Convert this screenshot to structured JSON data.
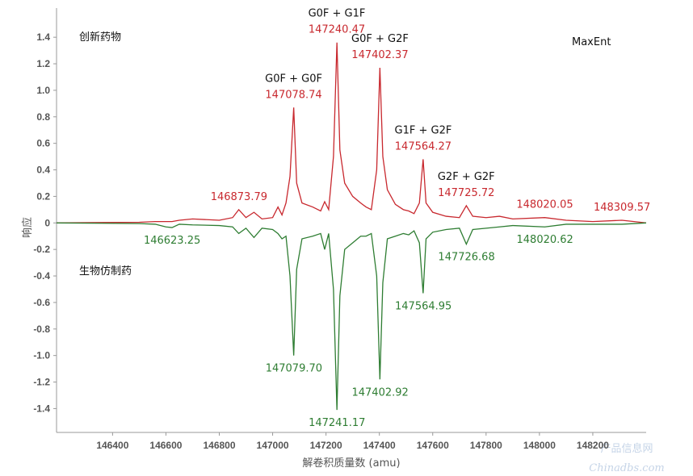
{
  "chart_data": {
    "type": "line",
    "xlabel": "解卷积质量数 (amu)",
    "ylabel": "响应",
    "texts": [
      "创新药物",
      "生物仿制药",
      "MaxEnt"
    ],
    "watermark": [
      "产品信息网",
      "Chinadbs.com"
    ],
    "xlim": [
      146190,
      148400
    ],
    "xticks": [
      146400,
      146600,
      146800,
      147000,
      147200,
      147400,
      147600,
      147800,
      148000,
      148200
    ],
    "ylim": [
      -1.58,
      1.62
    ],
    "yticks": [
      {
        "value": -1.4,
        "label": "-1.4"
      },
      {
        "value": -1.2,
        "label": "-1.2"
      },
      {
        "value": -1,
        "label": "-1.0"
      },
      -0.8,
      -0.6,
      -0.4,
      -0.2,
      0,
      0.2,
      0.4,
      0.6,
      0.8,
      {
        "value": 1,
        "label": "1.0"
      },
      1.2,
      1.4
    ],
    "x": [
      146190,
      146500,
      146560,
      146600,
      146623,
      146650,
      146700,
      146800,
      146850,
      146873,
      146900,
      146930,
      146960,
      147000,
      147020,
      147035,
      147050,
      147065,
      147079,
      147090,
      147110,
      147150,
      147180,
      147195,
      147210,
      147228,
      147241,
      147252,
      147270,
      147300,
      147330,
      147350,
      147370,
      147390,
      147402,
      147413,
      147430,
      147460,
      147490,
      147510,
      147530,
      147550,
      147564,
      147575,
      147600,
      147650,
      147700,
      147726,
      147750,
      147800,
      147850,
      147900,
      148020,
      148100,
      148200,
      148309,
      148400
    ],
    "series": [
      {
        "color": "#c8282e",
        "values": [
          0,
          0.005,
          0.01,
          0.01,
          0.01,
          0.02,
          0.03,
          0.02,
          0.04,
          0.1,
          0.04,
          0.08,
          0.03,
          0.04,
          0.12,
          0.06,
          0.15,
          0.35,
          0.87,
          0.3,
          0.15,
          0.12,
          0.09,
          0.16,
          0.1,
          0.5,
          1.36,
          0.55,
          0.3,
          0.2,
          0.15,
          0.12,
          0.1,
          0.4,
          1.17,
          0.5,
          0.25,
          0.14,
          0.1,
          0.09,
          0.07,
          0.15,
          0.48,
          0.15,
          0.08,
          0.05,
          0.04,
          0.13,
          0.05,
          0.04,
          0.05,
          0.03,
          0.04,
          0.02,
          0.01,
          0.02,
          0
        ]
      },
      {
        "color": "#2e7d32",
        "values": [
          0,
          -0.005,
          -0.01,
          -0.03,
          -0.035,
          -0.01,
          -0.015,
          -0.02,
          -0.03,
          -0.08,
          -0.04,
          -0.11,
          -0.04,
          -0.05,
          -0.08,
          -0.12,
          -0.1,
          -0.4,
          -1.0,
          -0.35,
          -0.12,
          -0.1,
          -0.08,
          -0.2,
          -0.08,
          -0.5,
          -1.41,
          -0.55,
          -0.2,
          -0.15,
          -0.1,
          -0.1,
          -0.08,
          -0.4,
          -1.18,
          -0.45,
          -0.12,
          -0.1,
          -0.08,
          -0.09,
          -0.06,
          -0.15,
          -0.53,
          -0.12,
          -0.07,
          -0.05,
          -0.04,
          -0.16,
          -0.05,
          -0.04,
          -0.03,
          -0.02,
          -0.03,
          -0.01,
          -0.01,
          -0.01,
          0
        ]
      }
    ],
    "annotations": [
      {
        "label": "G0F + G0F",
        "text": "147078.74",
        "x": 147078.74,
        "y": 0.87
      },
      {
        "label": "G0F + G1F",
        "text": "147240.47",
        "x": 147240.47,
        "y": 1.36
      },
      {
        "label": "G0F + G2F",
        "text": "147402.37",
        "x": 147402.37,
        "y": 1.17
      },
      {
        "label": "G1F + G2F",
        "text": "147564.27",
        "x": 147564.27,
        "y": 0.48
      },
      {
        "label": "G2F + G2F",
        "text": "147725.72",
        "x": 147725.72,
        "y": 0.13
      },
      {
        "text": "146873.79",
        "x": 146873.79,
        "y": 0.1
      },
      {
        "text": "148020.05",
        "x": 148020.05,
        "y": 0.04
      },
      {
        "text": "148309.57",
        "x": 148309.57,
        "y": 0.02
      },
      {
        "text": "146623.25",
        "x": 146623.25,
        "y": -0.035
      },
      {
        "text": "147079.70",
        "x": 147079.7,
        "y": -1.0
      },
      {
        "text": "147241.17",
        "x": 147241.17,
        "y": -1.41
      },
      {
        "text": "147402.92",
        "x": 147402.92,
        "y": -1.18
      },
      {
        "text": "147564.95",
        "x": 147564.95,
        "y": -0.53
      },
      {
        "text": "147726.68",
        "x": 147726.68,
        "y": -0.16
      },
      {
        "text": "148020.62",
        "x": 148020.62,
        "y": -0.03
      }
    ]
  }
}
